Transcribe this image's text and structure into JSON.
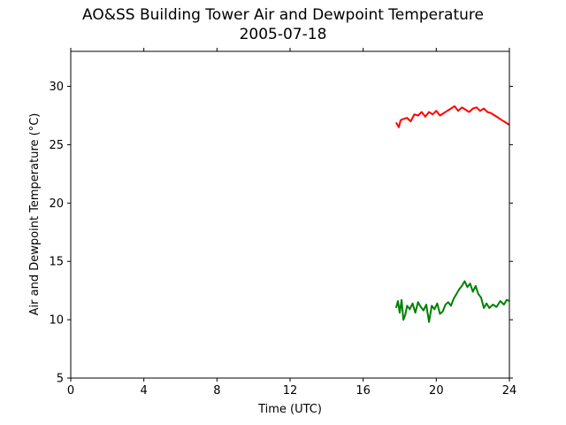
{
  "chart_data": {
    "type": "line",
    "title": "AO&SS Building Tower Air and Dewpoint Temperature",
    "subtitle": "2005-07-18",
    "xlabel": "Time (UTC)",
    "ylabel": "Air and Dewpoint Temperature (°C)",
    "xlim": [
      0,
      24
    ],
    "ylim": [
      5,
      33
    ],
    "xticks": [
      0,
      4,
      8,
      12,
      16,
      20,
      24
    ],
    "yticks": [
      5,
      10,
      15,
      20,
      25,
      30
    ],
    "grid": false,
    "series": [
      {
        "color": "#ff0000",
        "x": [
          17.8,
          17.95,
          18.05,
          18.2,
          18.4,
          18.6,
          18.8,
          19.0,
          19.2,
          19.4,
          19.6,
          19.8,
          20.0,
          20.2,
          20.4,
          20.6,
          20.8,
          21.0,
          21.2,
          21.4,
          21.6,
          21.8,
          22.0,
          22.2,
          22.4,
          22.6,
          22.8,
          23.0,
          23.2,
          23.4,
          23.6,
          23.8,
          24.0
        ],
        "y": [
          26.9,
          26.5,
          27.1,
          27.2,
          27.3,
          27.0,
          27.6,
          27.5,
          27.8,
          27.4,
          27.8,
          27.6,
          27.9,
          27.5,
          27.7,
          27.9,
          28.1,
          28.3,
          27.9,
          28.2,
          28.0,
          27.8,
          28.1,
          28.2,
          27.9,
          28.1,
          27.8,
          27.7,
          27.5,
          27.3,
          27.1,
          26.9,
          26.7
        ]
      },
      {
        "color": "#008000",
        "x": [
          17.8,
          17.9,
          18.0,
          18.1,
          18.2,
          18.3,
          18.4,
          18.55,
          18.7,
          18.85,
          19.0,
          19.15,
          19.3,
          19.45,
          19.6,
          19.75,
          19.9,
          20.05,
          20.2,
          20.35,
          20.5,
          20.65,
          20.8,
          20.95,
          21.1,
          21.25,
          21.4,
          21.55,
          21.7,
          21.85,
          22.0,
          22.15,
          22.3,
          22.45,
          22.6,
          22.75,
          22.9,
          23.1,
          23.3,
          23.5,
          23.7,
          23.85,
          24.0
        ],
        "y": [
          11.0,
          11.6,
          10.6,
          11.7,
          10.0,
          10.4,
          11.2,
          10.9,
          11.4,
          10.6,
          11.5,
          11.1,
          10.8,
          11.3,
          9.8,
          11.2,
          10.9,
          11.4,
          10.5,
          10.7,
          11.3,
          11.5,
          11.2,
          11.8,
          12.2,
          12.6,
          12.9,
          13.3,
          12.8,
          13.1,
          12.4,
          12.9,
          12.2,
          11.9,
          11.0,
          11.4,
          11.0,
          11.3,
          11.1,
          11.6,
          11.3,
          11.7,
          11.6
        ]
      }
    ]
  }
}
